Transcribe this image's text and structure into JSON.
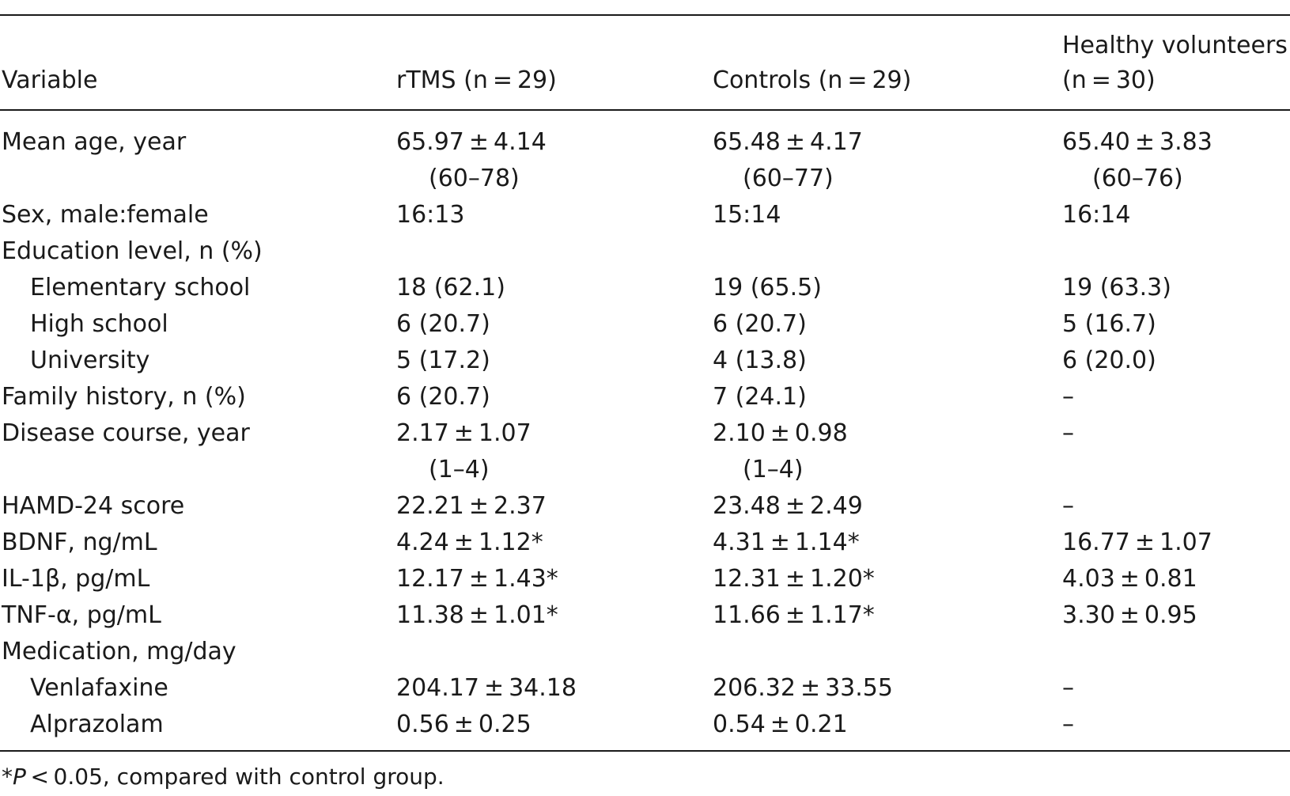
{
  "table": {
    "headers": {
      "variable": "Variable",
      "rtms": "rTMS (n = 29)",
      "controls": "Controls (n = 29)",
      "healthy_line1": "Healthy volunteers",
      "healthy_line2": "(n = 30)"
    },
    "rows": {
      "mean_age": {
        "label": "Mean age, year",
        "rtms": "65.97 ± 4.14",
        "rtms_range": "(60–78)",
        "controls": "65.48 ± 4.17",
        "controls_range": "(60–77)",
        "healthy": "65.40 ± 3.83",
        "healthy_range": "(60–76)"
      },
      "sex": {
        "label": "Sex, male:female",
        "rtms": "16:13",
        "controls": "15:14",
        "healthy": "16:14"
      },
      "education": {
        "label": "Education level, n (%)"
      },
      "elementary": {
        "label": "Elementary school",
        "rtms": "18 (62.1)",
        "controls": "19 (65.5)",
        "healthy": "19 (63.3)"
      },
      "high_school": {
        "label": "High school",
        "rtms": "6 (20.7)",
        "controls": "6 (20.7)",
        "healthy": "5 (16.7)"
      },
      "university": {
        "label": "University",
        "rtms": "5 (17.2)",
        "controls": "4 (13.8)",
        "healthy": "6 (20.0)"
      },
      "family_history": {
        "label": "Family history, n (%)",
        "rtms": "6 (20.7)",
        "controls": "7 (24.1)",
        "healthy": "–"
      },
      "disease_course": {
        "label": "Disease course, year",
        "rtms": "2.17 ± 1.07",
        "rtms_range": "(1–4)",
        "controls": "2.10 ± 0.98",
        "controls_range": "(1–4)",
        "healthy": "–"
      },
      "hamd": {
        "label": "HAMD-24 score",
        "rtms": "22.21 ± 2.37",
        "controls": "23.48 ± 2.49",
        "healthy": "–"
      },
      "bdnf": {
        "label": "BDNF, ng/mL",
        "rtms": "4.24 ± 1.12*",
        "controls": "4.31 ± 1.14*",
        "healthy": "16.77 ± 1.07"
      },
      "il1b": {
        "label": "IL-1β, pg/mL",
        "rtms": "12.17 ± 1.43*",
        "controls": "12.31 ± 1.20*",
        "healthy": "4.03 ± 0.81"
      },
      "tnfa": {
        "label": "TNF-α, pg/mL",
        "rtms": "11.38 ± 1.01*",
        "controls": "11.66 ± 1.17*",
        "healthy": "3.30 ± 0.95"
      },
      "medication": {
        "label": "Medication, mg/day"
      },
      "venlafaxine": {
        "label": "Venlafaxine",
        "rtms": "204.17 ± 34.18",
        "controls": "206.32 ± 33.55",
        "healthy": "–"
      },
      "alprazolam": {
        "label": "Alprazolam",
        "rtms": "0.56 ± 0.25",
        "controls": "0.54 ± 0.21",
        "healthy": "–"
      }
    }
  },
  "footnote": {
    "star": "*",
    "p": "P",
    "rest": " < 0.05, compared with control group."
  }
}
